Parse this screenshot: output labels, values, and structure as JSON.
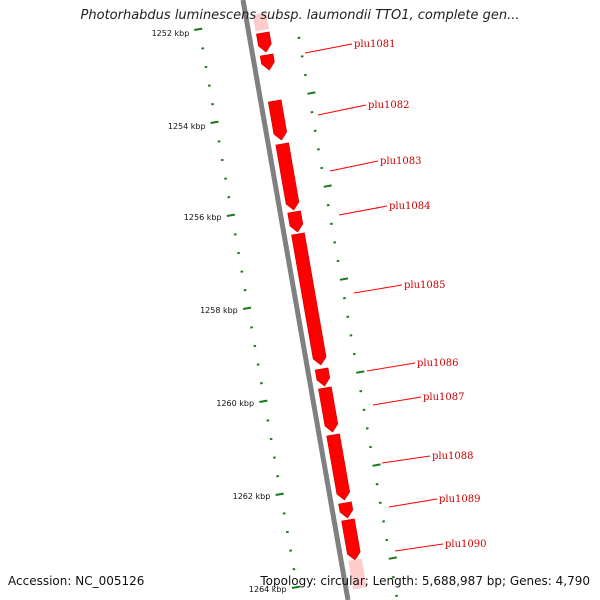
{
  "title": "Photorhabdus luminescens subsp. laumondii TTO1, complete gen...",
  "footer": {
    "accession": "Accession: NC_005126",
    "summary": "Topology: circular; Length: 5,688,987 bp; Genes: 4,790"
  },
  "colors": {
    "gene": "#ff0000",
    "gene_faded": "#ffcccc",
    "backbone": "#808080",
    "tick": "#1a7a1a",
    "label_text": "#cc0000"
  },
  "scale_labels": [
    "1252 kbp",
    "1254 kbp",
    "1256 kbp",
    "1258 kbp",
    "1260 kbp",
    "1262 kbp",
    "1264 kbp"
  ],
  "genes": [
    {
      "label": "plu1081"
    },
    {
      "label": "plu1082"
    },
    {
      "label": "plu1083"
    },
    {
      "label": "plu1084"
    },
    {
      "label": "plu1085"
    },
    {
      "label": "plu1086"
    },
    {
      "label": "plu1087"
    },
    {
      "label": "plu1088"
    },
    {
      "label": "plu1089"
    },
    {
      "label": "plu1090"
    }
  ]
}
